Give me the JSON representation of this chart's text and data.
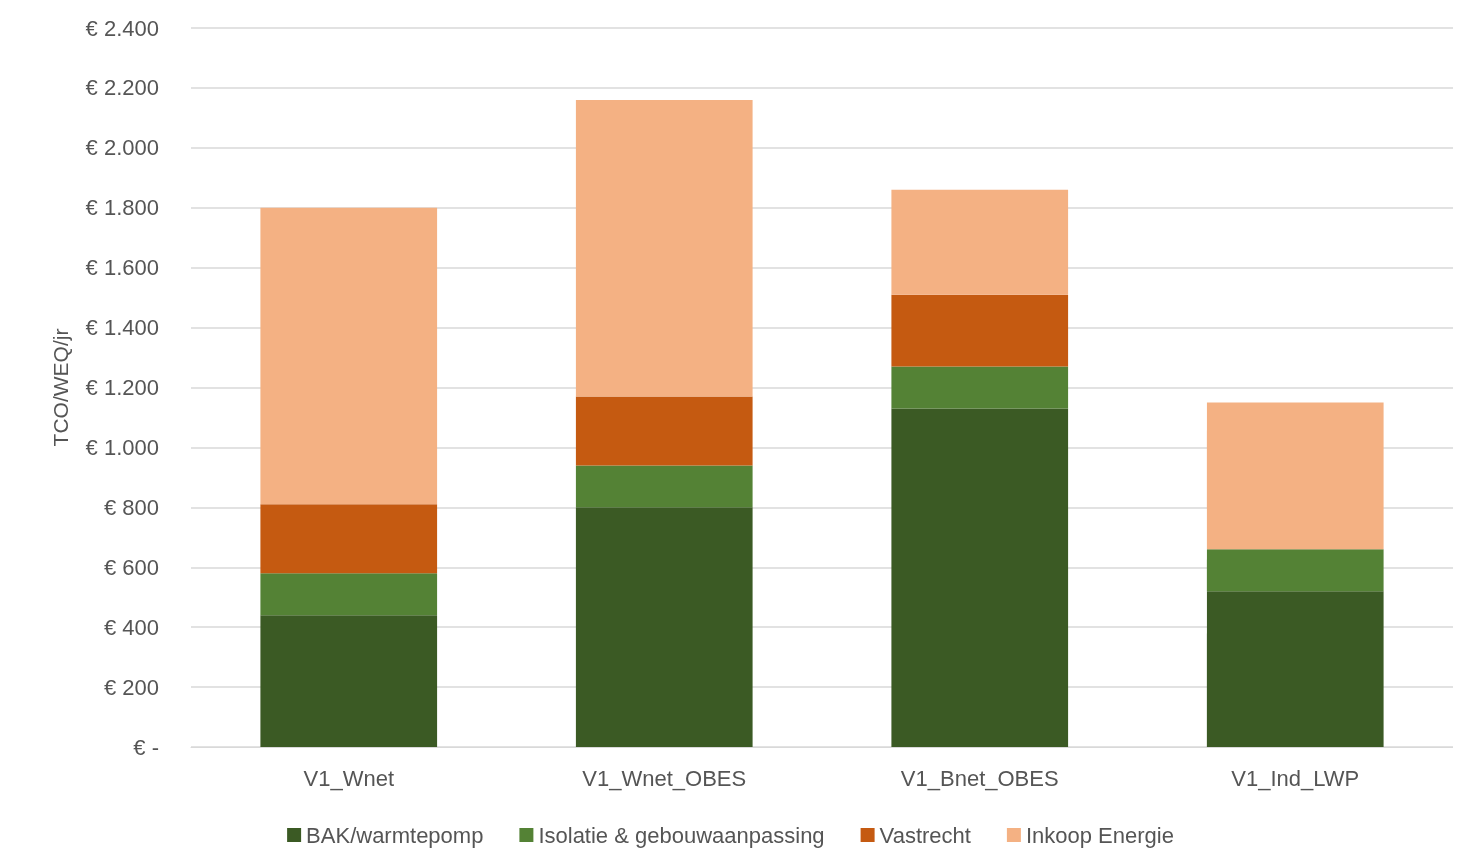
{
  "chart_data": {
    "type": "bar",
    "stacked": true,
    "ylabel": "TCO/WEQ/jr",
    "categories": [
      "V1_Wnet",
      "V1_Wnet_OBES",
      "V1_Bnet_OBES",
      "V1_Ind_LWP"
    ],
    "series": [
      {
        "name": "BAK/warmtepomp",
        "color": "#3b5a24",
        "values": [
          440,
          800,
          1130,
          520
        ]
      },
      {
        "name": "Isolatie & gebouwaanpassing",
        "color": "#548235",
        "values": [
          140,
          140,
          140,
          140
        ]
      },
      {
        "name": "Vastrecht",
        "color": "#c55a11",
        "values": [
          230,
          230,
          240,
          0
        ]
      },
      {
        "name": "Inkoop Energie",
        "color": "#f4b183",
        "values": [
          990,
          990,
          350,
          490
        ]
      }
    ],
    "ylim": [
      0,
      2400
    ],
    "yticks": [
      {
        "value": 0,
        "label": "€ -"
      },
      {
        "value": 200,
        "label": "€ 200"
      },
      {
        "value": 400,
        "label": "€ 400"
      },
      {
        "value": 600,
        "label": "€ 600"
      },
      {
        "value": 800,
        "label": "€ 800"
      },
      {
        "value": 1000,
        "label": "€ 1.000"
      },
      {
        "value": 1200,
        "label": "€ 1.200"
      },
      {
        "value": 1400,
        "label": "€ 1.400"
      },
      {
        "value": 1600,
        "label": "€ 1.600"
      },
      {
        "value": 1800,
        "label": "€ 1.800"
      },
      {
        "value": 2000,
        "label": "€ 2.000"
      },
      {
        "value": 2200,
        "label": "€ 2.200"
      },
      {
        "value": 2400,
        "label": "€ 2.400"
      }
    ],
    "grid": "y",
    "legend": "bottom"
  }
}
